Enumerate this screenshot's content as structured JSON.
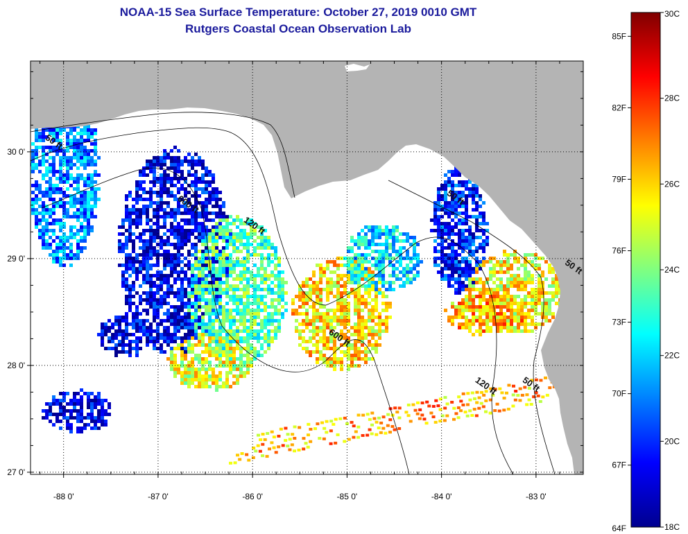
{
  "header": {
    "title": "NOAA-15 Sea Surface Temperature:  October 27, 2019 0010 GMT",
    "subtitle": "Rutgers Coastal Ocean Observation Lab"
  },
  "map": {
    "lon_range": [
      -88.35,
      -82.5
    ],
    "lat_range": [
      26.98,
      30.85
    ],
    "lon_ticks": [
      {
        "value": -88,
        "label": "-88 0'"
      },
      {
        "value": -87,
        "label": "-87 0'"
      },
      {
        "value": -86,
        "label": "-86 0'"
      },
      {
        "value": -85,
        "label": "-85 0'"
      },
      {
        "value": -84,
        "label": "-84 0'"
      },
      {
        "value": -83,
        "label": "-83 0'"
      }
    ],
    "lat_ticks": [
      {
        "value": 27,
        "label": "27 0'"
      },
      {
        "value": 28,
        "label": "28 0'"
      },
      {
        "value": 29,
        "label": "29 0'"
      },
      {
        "value": 30,
        "label": "30 0'"
      }
    ],
    "grid": true,
    "land_color": "#b4b4b4",
    "water_nodata_color": "#ffffff",
    "contour_labels": [
      {
        "text": "50 ft",
        "lon": -88.2,
        "lat": 30.12
      },
      {
        "text": "600 ft",
        "lon": -86.8,
        "lat": 29.55
      },
      {
        "text": "120 ft",
        "lon": -86.1,
        "lat": 29.35
      },
      {
        "text": "600 ft",
        "lon": -85.2,
        "lat": 28.3
      },
      {
        "text": "50 ft",
        "lon": -83.95,
        "lat": 29.6
      },
      {
        "text": "120 ft",
        "lon": -83.65,
        "lat": 27.85
      },
      {
        "text": "50 ft",
        "lon": -83.15,
        "lat": 27.85
      },
      {
        "text": "50 ft",
        "lon": -82.7,
        "lat": 28.95
      }
    ]
  },
  "colorbar": {
    "min_c": 18,
    "max_c": 30,
    "celsius_labels": [
      {
        "value": 30,
        "label": "30C"
      },
      {
        "value": 28,
        "label": "28C"
      },
      {
        "value": 26,
        "label": "26C"
      },
      {
        "value": 24,
        "label": "24C"
      },
      {
        "value": 22,
        "label": "22C"
      },
      {
        "value": 20,
        "label": "20C"
      },
      {
        "value": 18,
        "label": "18C"
      }
    ],
    "fahrenheit_labels": [
      {
        "value": 85,
        "label": "85F"
      },
      {
        "value": 82,
        "label": "82F"
      },
      {
        "value": 79,
        "label": "79F"
      },
      {
        "value": 76,
        "label": "76F"
      },
      {
        "value": 73,
        "label": "73F"
      },
      {
        "value": 70,
        "label": "70F"
      },
      {
        "value": 67,
        "label": "67F"
      },
      {
        "value": 64,
        "label": "64F"
      }
    ],
    "colormap": [
      "#00008f",
      "#0000ff",
      "#0080ff",
      "#00ffff",
      "#80ff80",
      "#ffff00",
      "#ff8000",
      "#ff0000",
      "#800000"
    ]
  }
}
